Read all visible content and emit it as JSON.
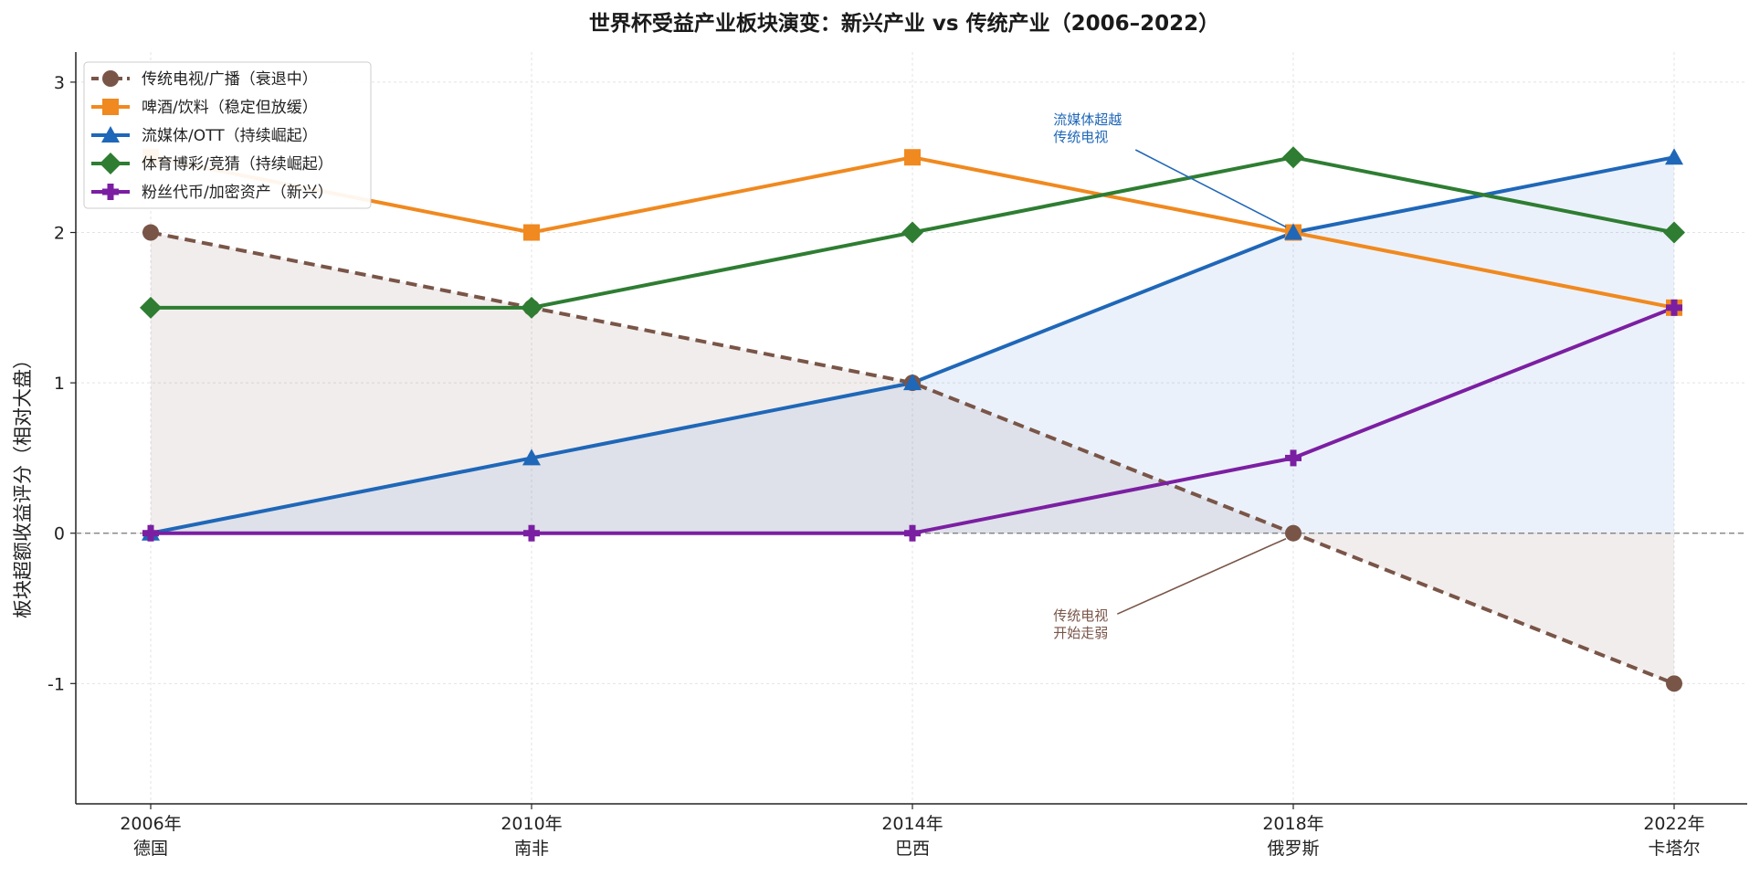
{
  "chart_data": {
    "type": "line",
    "title": "世界杯受益产业板块演变：新兴产业 vs 传统产业（2006–2022）",
    "ylabel": "板块超额收益评分（相对大盘）",
    "xlabel": "",
    "categories": [
      {
        "year": "2006年",
        "host": "德国"
      },
      {
        "year": "2010年",
        "host": "南非"
      },
      {
        "year": "2014年",
        "host": "巴西"
      },
      {
        "year": "2018年",
        "host": "俄罗斯"
      },
      {
        "year": "2022年",
        "host": "卡塔尔"
      }
    ],
    "ylim": [
      -1.8,
      3.2
    ],
    "yticks": [
      -1,
      0,
      1,
      2,
      3
    ],
    "ytick_labels": [
      "-1",
      "0",
      "1",
      "2",
      "3"
    ],
    "grid": true,
    "zero_line": true,
    "legend_position": "top-left",
    "series": [
      {
        "name": "传统电视/广播（衰退中）",
        "values": [
          2,
          1.5,
          1,
          0,
          -1
        ],
        "color": "#795548",
        "marker": "circle",
        "dashed": true,
        "fill": "#8d6e63"
      },
      {
        "name": "啤酒/饮料（稳定但放缓）",
        "values": [
          2.5,
          2,
          2.5,
          2,
          1.5
        ],
        "color": "#f0891f",
        "marker": "square",
        "dashed": false
      },
      {
        "name": "流媒体/OTT（持续崛起）",
        "values": [
          0,
          0.5,
          1,
          2,
          2.5
        ],
        "color": "#1f67b8",
        "marker": "triangle",
        "dashed": false,
        "fill": "#5b8fd8"
      },
      {
        "name": "体育博彩/竞猜（持续崛起）",
        "values": [
          1.5,
          1.5,
          2,
          2.5,
          2
        ],
        "color": "#2e7d32",
        "marker": "diamond",
        "dashed": false
      },
      {
        "name": "粉丝代币/加密资产（新兴）",
        "values": [
          0,
          0,
          0,
          0.5,
          1.5
        ],
        "color": "#7b1fa2",
        "marker": "plus",
        "dashed": false
      }
    ],
    "annotations": [
      {
        "lines": [
          "流媒体超越",
          "传统电视"
        ],
        "target_index": 3,
        "target_value": 2,
        "color": "#1f67b8",
        "text_x_index": 2.37,
        "text_y_value": 2.72
      },
      {
        "lines": [
          "传统电视",
          "开始走弱"
        ],
        "target_index": 3,
        "target_value": 0,
        "color": "#795548",
        "text_x_index": 2.37,
        "text_y_value": -0.58
      }
    ]
  }
}
